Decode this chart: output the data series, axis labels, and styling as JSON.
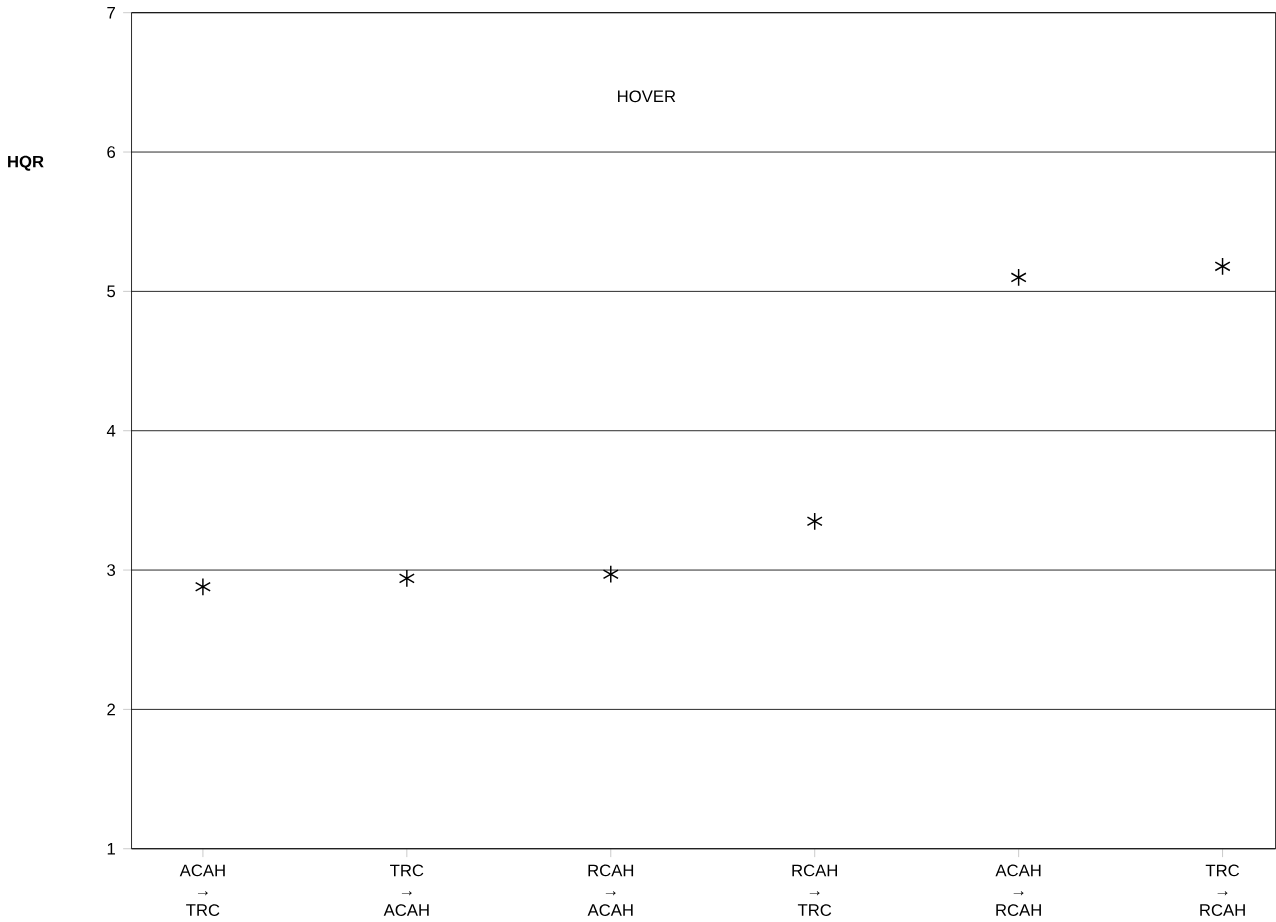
{
  "chart_data": {
    "type": "scatter",
    "ylabel": "HQR",
    "annotations": [
      "HOVER"
    ],
    "categories": [
      "ACAH → TRC",
      "TRC → ACAH",
      "RCAH → ACAH",
      "RCAH → TRC",
      "ACAH → RCAH",
      "TRC → RCAH"
    ],
    "values": [
      2.88,
      2.94,
      2.97,
      3.35,
      5.1,
      5.18
    ],
    "color": "#000000",
    "marker": "cross",
    "grid": "y",
    "ylim": [
      1,
      7
    ],
    "yticks": [
      1,
      2,
      3,
      4,
      5,
      6,
      7
    ]
  }
}
